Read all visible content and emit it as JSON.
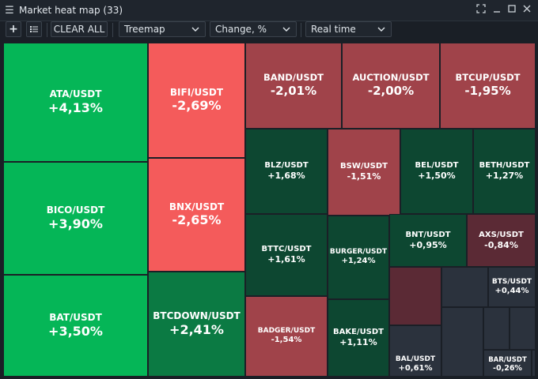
{
  "window": {
    "title": "Market heat map (33)"
  },
  "toolbar": {
    "clear_all_label": "CLEAR ALL",
    "view_select": "Treemap",
    "metric_select": "Change, %",
    "period_select": "Real time"
  },
  "icons": {
    "menu": "hamburger-icon",
    "add": "plus-icon",
    "list": "list-icon",
    "fullscreen": "fullscreen-icon",
    "minimize": "minimize-icon",
    "maximize": "maximize-icon",
    "close": "close-icon",
    "dropdown": "chevron-down-icon"
  },
  "colors": {
    "strong_up": "#05b657",
    "up": "#0b7a43",
    "slight_up": "#0d4731",
    "strong_down": "#f45b5b",
    "down": "#a0434a",
    "slight_down": "#5b2a35",
    "neutral": "#2b323d"
  },
  "tiles": {
    "ata": {
      "symbol": "ATA/USDT",
      "change": "+4,13%"
    },
    "bico": {
      "symbol": "BICO/USDT",
      "change": "+3,90%"
    },
    "bat": {
      "symbol": "BAT/USDT",
      "change": "+3,50%"
    },
    "bifi": {
      "symbol": "BIFI/USDT",
      "change": "-2,69%"
    },
    "bnx": {
      "symbol": "BNX/USDT",
      "change": "-2,65%"
    },
    "btcdown": {
      "symbol": "BTCDOWN/USDT",
      "change": "+2,41%"
    },
    "band": {
      "symbol": "BAND/USDT",
      "change": "-2,01%"
    },
    "auction": {
      "symbol": "AUCTION/USDT",
      "change": "-2,00%"
    },
    "btcup": {
      "symbol": "BTCUP/USDT",
      "change": "-1,95%"
    },
    "blz": {
      "symbol": "BLZ/USDT",
      "change": "+1,68%"
    },
    "bsw": {
      "symbol": "BSW/USDT",
      "change": "-1,51%"
    },
    "bel": {
      "symbol": "BEL/USDT",
      "change": "+1,50%"
    },
    "beth": {
      "symbol": "BETH/USDT",
      "change": "+1,27%"
    },
    "bttc": {
      "symbol": "BTTC/USDT",
      "change": "+1,61%"
    },
    "burger": {
      "symbol": "BURGER/USDT",
      "change": "+1,24%"
    },
    "bnt": {
      "symbol": "BNT/USDT",
      "change": "+0,95%"
    },
    "axs": {
      "symbol": "AXS/USDT",
      "change": "-0,84%"
    },
    "bts": {
      "symbol": "BTS/USDT",
      "change": "+0,44%"
    },
    "badger": {
      "symbol": "BADGER/USDT",
      "change": "-1,54%"
    },
    "bake": {
      "symbol": "BAKE/USDT",
      "change": "+1,11%"
    },
    "bal": {
      "symbol": "BAL/USDT",
      "change": "+0,61%"
    },
    "bar": {
      "symbol": "BAR/USDT",
      "change": "-0,26%"
    }
  }
}
